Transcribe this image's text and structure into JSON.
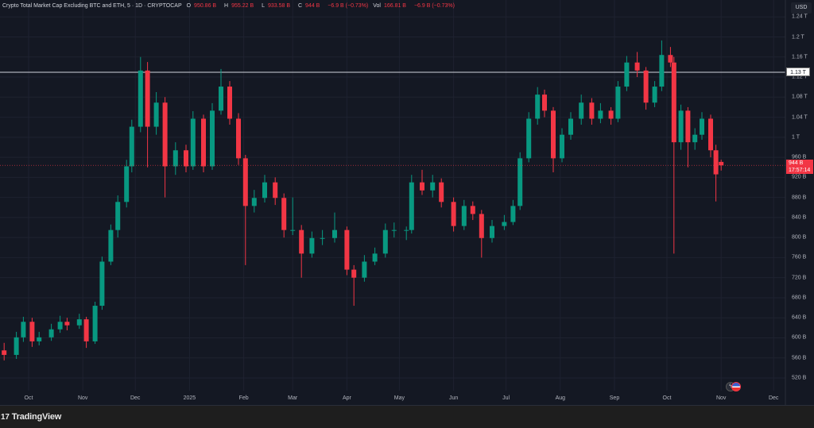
{
  "header": {
    "symbol": "Crypto Total Market Cap Excluding BTC and ETH, 5 · 1D · CRYPTOCAP",
    "open_label": "O",
    "open": "950.86 B",
    "high_label": "H",
    "high": "955.22 B",
    "low_label": "L",
    "low": "933.58 B",
    "close_label": "C",
    "close": "944 B",
    "change": "−6.9 B (−0.73%)",
    "vol_label": "Vol",
    "vol": "166.81 B",
    "vol_change": "−6.9 B (−0.73%)"
  },
  "currency_button": "USD",
  "horizontal_line": {
    "value": "1.13 T",
    "price": 1130
  },
  "last_price": {
    "value": "944 B",
    "countdown": "17:57:14"
  },
  "footer": {
    "brand": "TradingView"
  },
  "colors": {
    "up": "#089981",
    "down": "#f23645",
    "background": "#141823",
    "grid": "#1e2230",
    "line": "#d1d4dc"
  },
  "chart_data": {
    "type": "candlestick",
    "interval": "1D",
    "unit": "B USD",
    "y_ticks": [
      "1.24 T",
      "1.2 T",
      "1.16 T",
      "1.12 T",
      "1.08 T",
      "1.04 T",
      "1 T",
      "960 B",
      "920 B",
      "880 B",
      "840 B",
      "800 B",
      "760 B",
      "720 B",
      "680 B",
      "640 B",
      "600 B",
      "560 B",
      "520 B"
    ],
    "y_tick_values": [
      1240,
      1200,
      1160,
      1120,
      1080,
      1040,
      1000,
      960,
      920,
      880,
      840,
      800,
      760,
      720,
      680,
      640,
      600,
      560,
      520
    ],
    "ylim": [
      505,
      1270
    ],
    "x_ticks": [
      "Oct",
      "Nov",
      "Dec",
      "2025",
      "Feb",
      "Mar",
      "Apr",
      "May",
      "Jun",
      "Jul",
      "Aug",
      "Sep",
      "Oct",
      "Nov",
      "Dec"
    ],
    "x_tick_dates": [
      "2024-10-01",
      "2024-11-01",
      "2024-12-01",
      "2025-01-01",
      "2025-02-01",
      "2025-03-01",
      "2025-04-01",
      "2025-05-01",
      "2025-06-01",
      "2025-07-01",
      "2025-08-01",
      "2025-09-01",
      "2025-10-01",
      "2025-11-01",
      "2025-12-01"
    ],
    "grid": true,
    "candles": [
      [
        "2024-09-17",
        575,
        590,
        555,
        566
      ],
      [
        "2024-09-24",
        566,
        612,
        558,
        601
      ],
      [
        "2024-09-28",
        601,
        642,
        592,
        632
      ],
      [
        "2024-10-03",
        632,
        640,
        582,
        593
      ],
      [
        "2024-10-07",
        593,
        612,
        585,
        601
      ],
      [
        "2024-10-14",
        601,
        628,
        594,
        617
      ],
      [
        "2024-10-19",
        617,
        644,
        610,
        632
      ],
      [
        "2024-10-23",
        632,
        640,
        615,
        625
      ],
      [
        "2024-10-30",
        625,
        648,
        618,
        637
      ],
      [
        "2024-11-03",
        637,
        642,
        580,
        593
      ],
      [
        "2024-11-08",
        593,
        672,
        588,
        664
      ],
      [
        "2024-11-12",
        664,
        762,
        656,
        752
      ],
      [
        "2024-11-17",
        752,
        826,
        745,
        815
      ],
      [
        "2024-11-21",
        815,
        884,
        800,
        871
      ],
      [
        "2024-11-26",
        871,
        955,
        860,
        942
      ],
      [
        "2024-11-29",
        942,
        1035,
        930,
        1021
      ],
      [
        "2024-12-04",
        1021,
        1160,
        1010,
        1133
      ],
      [
        "2024-12-08",
        1133,
        1150,
        940,
        1021
      ],
      [
        "2024-12-13",
        1021,
        1090,
        1005,
        1069
      ],
      [
        "2024-12-18",
        1069,
        1080,
        880,
        942
      ],
      [
        "2024-12-24",
        942,
        990,
        925,
        974
      ],
      [
        "2024-12-30",
        974,
        985,
        930,
        942
      ],
      [
        "2025-01-03",
        942,
        1052,
        935,
        1037
      ],
      [
        "2025-01-09",
        1037,
        1045,
        930,
        942
      ],
      [
        "2025-01-14",
        942,
        1068,
        935,
        1053
      ],
      [
        "2025-01-19",
        1053,
        1136,
        1045,
        1101
      ],
      [
        "2025-01-24",
        1101,
        1112,
        1025,
        1037
      ],
      [
        "2025-01-29",
        1037,
        1048,
        945,
        958
      ],
      [
        "2025-02-02",
        958,
        965,
        745,
        863
      ],
      [
        "2025-02-07",
        863,
        895,
        850,
        879
      ],
      [
        "2025-02-13",
        879,
        925,
        870,
        910
      ],
      [
        "2025-02-19",
        910,
        920,
        865,
        879
      ],
      [
        "2025-02-24",
        879,
        888,
        800,
        815
      ],
      [
        "2025-03-01",
        815,
        880,
        805,
        815
      ],
      [
        "2025-03-06",
        815,
        825,
        720,
        768
      ],
      [
        "2025-03-12",
        768,
        812,
        760,
        799
      ],
      [
        "2025-03-18",
        799,
        815,
        785,
        799
      ],
      [
        "2025-03-25",
        799,
        850,
        790,
        815
      ],
      [
        "2025-04-01",
        815,
        822,
        725,
        736
      ],
      [
        "2025-04-05",
        736,
        745,
        664,
        720
      ],
      [
        "2025-04-11",
        720,
        765,
        712,
        752
      ],
      [
        "2025-04-17",
        752,
        780,
        745,
        768
      ],
      [
        "2025-04-23",
        768,
        828,
        760,
        815
      ],
      [
        "2025-04-28",
        815,
        830,
        800,
        815
      ],
      [
        "2025-05-05",
        815,
        822,
        795,
        815
      ],
      [
        "2025-05-08",
        815,
        925,
        808,
        910
      ],
      [
        "2025-05-14",
        910,
        935,
        885,
        894
      ],
      [
        "2025-05-20",
        894,
        925,
        880,
        910
      ],
      [
        "2025-05-25",
        910,
        918,
        860,
        871
      ],
      [
        "2025-06-01",
        871,
        880,
        812,
        823
      ],
      [
        "2025-06-07",
        823,
        875,
        815,
        863
      ],
      [
        "2025-06-12",
        863,
        872,
        835,
        847
      ],
      [
        "2025-06-17",
        847,
        855,
        760,
        799
      ],
      [
        "2025-06-23",
        799,
        835,
        790,
        823
      ],
      [
        "2025-06-30",
        823,
        845,
        815,
        831
      ],
      [
        "2025-07-05",
        831,
        875,
        825,
        863
      ],
      [
        "2025-07-09",
        863,
        970,
        855,
        958
      ],
      [
        "2025-07-14",
        958,
        1050,
        950,
        1037
      ],
      [
        "2025-07-19",
        1037,
        1100,
        1025,
        1085
      ],
      [
        "2025-07-23",
        1085,
        1095,
        1040,
        1053
      ],
      [
        "2025-07-28",
        1053,
        1060,
        930,
        958
      ],
      [
        "2025-08-02",
        958,
        1018,
        950,
        1005
      ],
      [
        "2025-08-07",
        1005,
        1050,
        995,
        1037
      ],
      [
        "2025-08-13",
        1037,
        1085,
        1025,
        1069
      ],
      [
        "2025-08-19",
        1069,
        1078,
        1025,
        1037
      ],
      [
        "2025-08-24",
        1037,
        1068,
        1028,
        1053
      ],
      [
        "2025-08-30",
        1053,
        1060,
        1025,
        1037
      ],
      [
        "2025-09-03",
        1037,
        1112,
        1030,
        1101
      ],
      [
        "2025-09-08",
        1101,
        1162,
        1092,
        1149
      ],
      [
        "2025-09-14",
        1149,
        1170,
        1120,
        1133
      ],
      [
        "2025-09-19",
        1133,
        1140,
        1055,
        1069
      ],
      [
        "2025-09-24",
        1069,
        1112,
        1060,
        1101
      ],
      [
        "2025-09-28",
        1101,
        1193,
        1092,
        1164
      ],
      [
        "2025-10-03",
        1164,
        1180,
        1140,
        1149
      ],
      [
        "2025-10-05",
        1149,
        1160,
        768,
        990
      ],
      [
        "2025-10-09",
        990,
        1065,
        975,
        1053
      ],
      [
        "2025-10-13",
        1053,
        1060,
        940,
        990
      ],
      [
        "2025-10-17",
        990,
        1018,
        975,
        1005
      ],
      [
        "2025-10-21",
        1005,
        1050,
        995,
        1037
      ],
      [
        "2025-10-26",
        1037,
        1045,
        960,
        974
      ],
      [
        "2025-10-29",
        974,
        985,
        872,
        926
      ],
      [
        "2025-11-01",
        950.86,
        955.22,
        933.58,
        944
      ]
    ]
  }
}
